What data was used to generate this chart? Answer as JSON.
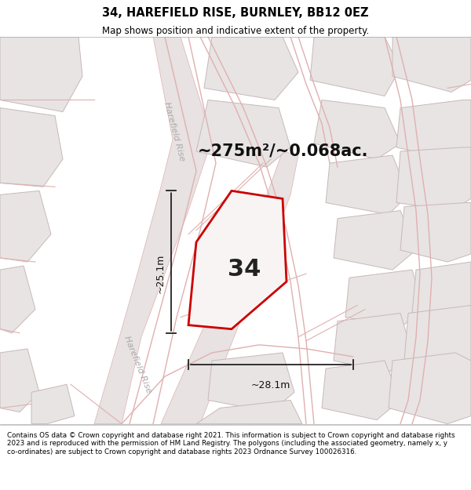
{
  "title_line1": "34, HAREFIELD RISE, BURNLEY, BB12 0EZ",
  "title_line2": "Map shows position and indicative extent of the property.",
  "area_text": "~275m²/~0.068ac.",
  "plot_number": "34",
  "dim_width": "~28.1m",
  "dim_height": "~25.1m",
  "footer_text": "Contains OS data © Crown copyright and database right 2021. This information is subject to Crown copyright and database rights 2023 and is reproduced with the permission of HM Land Registry. The polygons (including the associated geometry, namely x, y co-ordinates) are subject to Crown copyright and database rights 2023 Ordnance Survey 100026316.",
  "bg_map": "#f8f4f4",
  "road_fill": "#e8e0e0",
  "building_fill": "#e8e4e4",
  "building_edge": "#c8b8b8",
  "road_line": "#e0b0b0",
  "plot_edge": "#cc0000",
  "plot_fill": "#f8f4f4",
  "dim_line_color": "#222222",
  "street_color": "#aaaaaa",
  "title_fontsize": 10.5,
  "subtitle_fontsize": 8.5,
  "area_fontsize": 15,
  "plot_num_fontsize": 22,
  "dim_fontsize": 9,
  "street_fontsize": 8,
  "footer_fontsize": 6.3
}
